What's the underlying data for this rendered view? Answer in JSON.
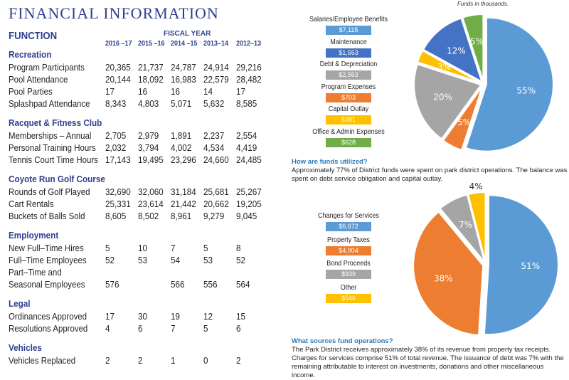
{
  "title": "FINANCIAL INFORMATION",
  "function_label": "FUNCTION",
  "fiscal_year_label": "FISCAL YEAR",
  "years": [
    "2016 –17",
    "2015 –16",
    "2014 –15",
    "2013–14",
    "2012–13"
  ],
  "sections": [
    {
      "name": "Recreation",
      "rows": [
        {
          "label": "Program Participants",
          "values": [
            "20,365",
            "21,737",
            "24,787",
            "24,914",
            "29,216"
          ]
        },
        {
          "label": "Pool Attendance",
          "values": [
            "20,144",
            "18,092",
            "16,983",
            "22,579",
            "28,482"
          ]
        },
        {
          "label": "Pool Parties",
          "values": [
            "17",
            "16",
            "16",
            "14",
            "17"
          ]
        },
        {
          "label": "Splashpad Attendance",
          "values": [
            "8,343",
            "4,803",
            "5,071",
            "5,632",
            "8,585"
          ]
        }
      ]
    },
    {
      "name": "Racquet & Fitness Club",
      "rows": [
        {
          "label": "Memberships – Annual",
          "values": [
            "2,705",
            "2,979",
            "1,891",
            "2,237",
            "2,554"
          ]
        },
        {
          "label": "Personal Training Hours",
          "values": [
            "2,032",
            "3,794",
            "4,002",
            "4,534",
            "4,419"
          ]
        },
        {
          "label": "Tennis Court Time Hours",
          "values": [
            "17,143",
            "19,495",
            "23,296",
            "24,660",
            "24,485"
          ]
        }
      ]
    },
    {
      "name": "Coyote Run Golf Course",
      "rows": [
        {
          "label": "Rounds of Golf Played",
          "values": [
            "32,690",
            "32,060",
            "31,184",
            "25,681",
            "25,267"
          ]
        },
        {
          "label": "Cart Rentals",
          "values": [
            "25,331",
            "23,614",
            "21,442",
            "20,662",
            "19,205"
          ]
        },
        {
          "label": "Buckets of Balls Sold",
          "values": [
            "8,605",
            "8,502",
            "8,961",
            "9,279",
            "9,045"
          ]
        }
      ]
    },
    {
      "name": "Employment",
      "rows": [
        {
          "label": "New Full–Time Hires",
          "values": [
            "5",
            "10",
            "7",
            "5",
            "8"
          ]
        },
        {
          "label": "Full–Time Employees",
          "values": [
            "52",
            "53",
            "54",
            "53",
            "52"
          ]
        },
        {
          "pre": "Part–Time and",
          "label": "Seasonal Employees",
          "values": [
            "576",
            "",
            "566",
            "556",
            "564"
          ]
        }
      ]
    },
    {
      "name": "Legal",
      "rows": [
        {
          "label": "Ordinances Approved",
          "values": [
            "17",
            "30",
            "19",
            "12",
            "15"
          ]
        },
        {
          "label": "Resolutions Approved",
          "values": [
            "4",
            "6",
            "7",
            "5",
            "6"
          ]
        }
      ]
    },
    {
      "name": "Vehicles",
      "rows": [
        {
          "label": "Vehicles Replaced",
          "values": [
            "2",
            "2",
            "1",
            "0",
            "2"
          ]
        }
      ]
    }
  ],
  "funds_note": "Funds in thousands.",
  "chart_data": [
    {
      "type": "pie",
      "title": "How are funds utilized?",
      "units": "thousands",
      "categories": [
        "Salaries/Employee Benefits",
        "Program Expenses",
        "Debt & Depreciation",
        "Capital Outlay",
        "Maintenance",
        "Office & Admin Expenses"
      ],
      "amounts": [
        "$7,115",
        "$703",
        "$2,553",
        "$381",
        "$1,553",
        "$628"
      ],
      "values": [
        55,
        5,
        20,
        3,
        12,
        5
      ],
      "labels": [
        "55%",
        "5%",
        "20%",
        "3%",
        "12%",
        "5%"
      ],
      "colors": [
        "#5b9bd5",
        "#ed7d31",
        "#a5a5a5",
        "#ffc000",
        "#4472c4",
        "#70ad47"
      ],
      "legend_order": [
        0,
        4,
        2,
        1,
        3,
        5
      ]
    },
    {
      "type": "pie",
      "title": "What sources fund operations?",
      "units": "thousands",
      "categories": [
        "Changes for Services",
        "Property Taxes",
        "Bond Proceeds",
        "Other"
      ],
      "amounts": [
        "$6,672",
        "$4,904",
        "$939",
        "$546"
      ],
      "values": [
        51,
        38,
        7,
        4
      ],
      "labels": [
        "51%",
        "38%",
        "7%",
        "4%"
      ],
      "colors": [
        "#5b9bd5",
        "#ed7d31",
        "#a5a5a5",
        "#ffc000"
      ],
      "legend_order": [
        0,
        1,
        2,
        3
      ]
    }
  ],
  "q1": "How are funds utilized?",
  "p1": "Approximately 77% of District funds were spent on park district operations. The balance was spent on debt service obligation and capital outlay.",
  "q2": "What sources fund operations?",
  "p2": "The Park District receives approximately 38% of its revenue from property tax receipts. Charges for services comprise 51% of total revenue. The issuance of debt was 7% with the remaining attributable to interest on investments, donations and other miscellaneous income."
}
